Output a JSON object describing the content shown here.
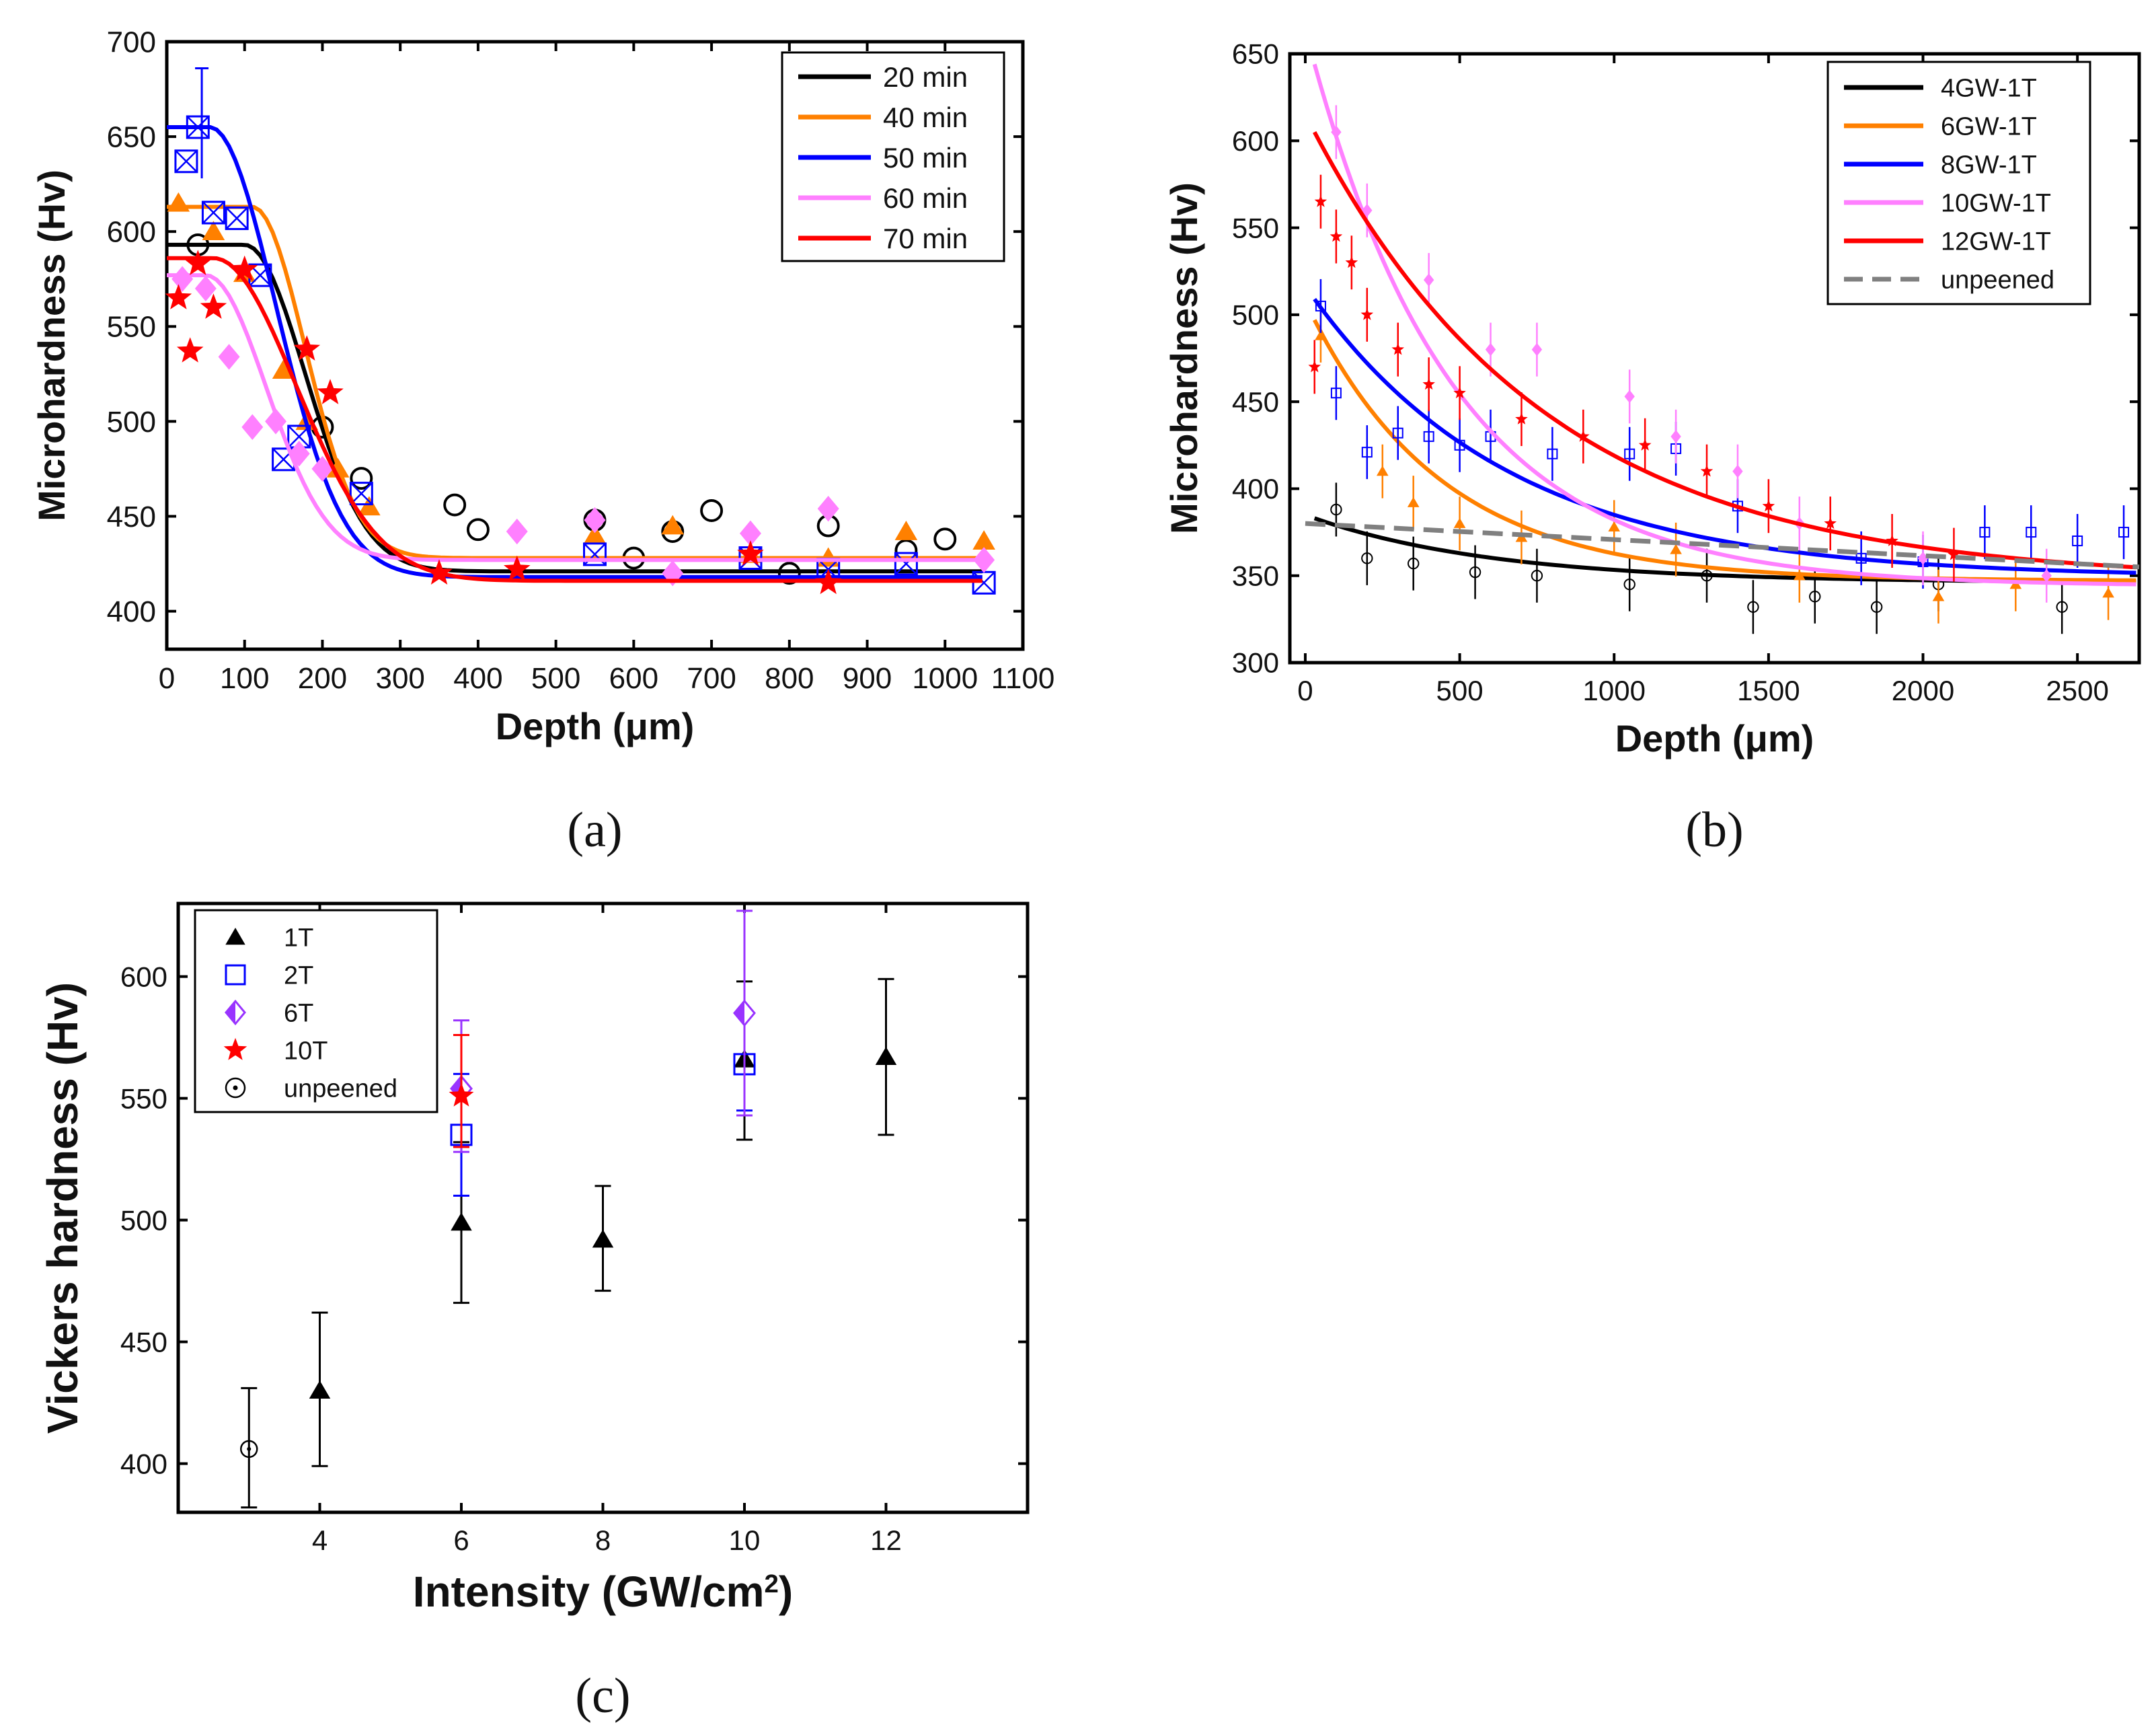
{
  "chart_data": [
    {
      "id": "a",
      "type": "scatter",
      "caption": "(a)",
      "xlabel": "Depth (μm)",
      "ylabel": "Microhardness (Hv)",
      "xlim": [
        0,
        1100
      ],
      "ylim": [
        380,
        700
      ],
      "xticks": [
        0,
        100,
        200,
        300,
        400,
        500,
        600,
        700,
        800,
        900,
        1000,
        1100
      ],
      "yticks": [
        400,
        450,
        500,
        550,
        600,
        650,
        700
      ],
      "legend_position": "top-right",
      "series": [
        {
          "name": "20 min",
          "color": "#000000",
          "marker": "circle",
          "points": [
            [
              40,
              593
            ],
            [
              200,
              497
            ],
            [
              250,
              470
            ],
            [
              370,
              456
            ],
            [
              400,
              443
            ],
            [
              550,
              448
            ],
            [
              600,
              428
            ],
            [
              650,
              442
            ],
            [
              700,
              453
            ],
            [
              800,
              420
            ],
            [
              850,
              445
            ],
            [
              950,
              432
            ],
            [
              1000,
              438
            ]
          ],
          "fit": {
            "base": 421,
            "amp": 172,
            "center": 100,
            "width": 110
          }
        },
        {
          "name": "40 min",
          "color": "#ff8000",
          "marker": "triangle",
          "points": [
            [
              15,
              615
            ],
            [
              60,
              600
            ],
            [
              100,
              578
            ],
            [
              150,
              527
            ],
            [
              180,
              500
            ],
            [
              220,
              475
            ],
            [
              260,
              455
            ],
            [
              550,
              440
            ],
            [
              650,
              445
            ],
            [
              750,
              430
            ],
            [
              850,
              428
            ],
            [
              950,
              442
            ],
            [
              1050,
              437
            ]
          ],
          "fit": {
            "base": 428,
            "amp": 185,
            "center": 110,
            "width": 95
          }
        },
        {
          "name": "50 min",
          "color": "#0000ff",
          "marker": "square-x",
          "points": [
            [
              25,
              637
            ],
            [
              40,
              655
            ],
            [
              60,
              610
            ],
            [
              90,
              607
            ],
            [
              120,
              577
            ],
            [
              150,
              480
            ],
            [
              170,
              492
            ],
            [
              250,
              462
            ],
            [
              550,
              430
            ],
            [
              750,
              428
            ],
            [
              850,
              422
            ],
            [
              950,
              425
            ],
            [
              1050,
              415
            ]
          ],
          "fit": {
            "base": 418,
            "amp": 237,
            "center": 55,
            "width": 120
          }
        },
        {
          "name": "60 min",
          "color": "#ff80ff",
          "marker": "diamond",
          "points": [
            [
              20,
              575
            ],
            [
              50,
              570
            ],
            [
              80,
              534
            ],
            [
              110,
              497
            ],
            [
              140,
              500
            ],
            [
              170,
              483
            ],
            [
              200,
              475
            ],
            [
              450,
              442
            ],
            [
              550,
              448
            ],
            [
              650,
              420
            ],
            [
              750,
              441
            ],
            [
              850,
              454
            ],
            [
              1050,
              427
            ]
          ],
          "fit": {
            "base": 427,
            "amp": 150,
            "center": 50,
            "width": 110
          }
        },
        {
          "name": "70 min",
          "color": "#ff0000",
          "marker": "star",
          "points": [
            [
              15,
              565
            ],
            [
              30,
              537
            ],
            [
              40,
              583
            ],
            [
              60,
              560
            ],
            [
              100,
              580
            ],
            [
              180,
              538
            ],
            [
              210,
              515
            ],
            [
              350,
              420
            ],
            [
              450,
              422
            ],
            [
              750,
              430
            ],
            [
              850,
              415
            ]
          ],
          "fit": {
            "base": 416,
            "amp": 170,
            "center": 60,
            "width": 150
          }
        }
      ],
      "error_bar": {
        "x": 45,
        "low": 628,
        "high": 686,
        "color": "#0000ff"
      }
    },
    {
      "id": "b",
      "type": "scatter",
      "caption": "(b)",
      "xlabel": "Depth (μm)",
      "ylabel": "Microhardness (Hv)",
      "xlim": [
        -50,
        2700
      ],
      "ylim": [
        300,
        650
      ],
      "xticks": [
        0,
        500,
        1000,
        1500,
        2000,
        2500
      ],
      "yticks": [
        300,
        350,
        400,
        450,
        500,
        550,
        600,
        650
      ],
      "legend_position": "top-right",
      "series": [
        {
          "name": "4GW-1T",
          "color": "#000000",
          "marker": "small-circle",
          "points": [
            [
              100,
              388
            ],
            [
              200,
              360
            ],
            [
              350,
              357
            ],
            [
              550,
              352
            ],
            [
              750,
              350
            ],
            [
              1050,
              345
            ],
            [
              1300,
              350
            ],
            [
              1450,
              332
            ],
            [
              1650,
              338
            ],
            [
              1850,
              332
            ],
            [
              2050,
              345
            ],
            [
              2450,
              332
            ]
          ],
          "fit": {
            "base": 346,
            "amp": 37,
            "decay": 600
          }
        },
        {
          "name": "6GW-1T",
          "color": "#ff8000",
          "marker": "small-triangle",
          "points": [
            [
              50,
              488
            ],
            [
              250,
              410
            ],
            [
              350,
              392
            ],
            [
              500,
              380
            ],
            [
              700,
              372
            ],
            [
              1000,
              378
            ],
            [
              1200,
              365
            ],
            [
              1600,
              350
            ],
            [
              2050,
              338
            ],
            [
              2300,
              345
            ],
            [
              2600,
              340
            ]
          ],
          "fit": {
            "base": 347,
            "amp": 150,
            "decay": 430
          }
        },
        {
          "name": "8GW-1T",
          "color": "#0000ff",
          "marker": "small-square",
          "points": [
            [
              50,
              505
            ],
            [
              100,
              455
            ],
            [
              200,
              421
            ],
            [
              300,
              432
            ],
            [
              400,
              430
            ],
            [
              500,
              425
            ],
            [
              600,
              430
            ],
            [
              800,
              420
            ],
            [
              1050,
              420
            ],
            [
              1200,
              423
            ],
            [
              1400,
              390
            ],
            [
              1800,
              360
            ],
            [
              2000,
              358
            ],
            [
              2200,
              375
            ],
            [
              2350,
              375
            ],
            [
              2500,
              370
            ],
            [
              2650,
              375
            ]
          ],
          "fit": {
            "base": 349,
            "amp": 160,
            "decay": 650
          }
        },
        {
          "name": "10GW-1T",
          "color": "#ff80ff",
          "marker": "small-diamond",
          "points": [
            [
              100,
              605
            ],
            [
              200,
              560
            ],
            [
              400,
              520
            ],
            [
              600,
              480
            ],
            [
              750,
              480
            ],
            [
              1050,
              453
            ],
            [
              1200,
              430
            ],
            [
              1400,
              410
            ],
            [
              1600,
              380
            ],
            [
              2000,
              360
            ],
            [
              2400,
              350
            ]
          ],
          "fit": {
            "base": 344,
            "amp": 300,
            "decay": 470
          }
        },
        {
          "name": "12GW-1T",
          "color": "#ff0000",
          "marker": "small-star",
          "points": [
            [
              30,
              470
            ],
            [
              50,
              565
            ],
            [
              100,
              545
            ],
            [
              150,
              530
            ],
            [
              200,
              500
            ],
            [
              300,
              480
            ],
            [
              400,
              460
            ],
            [
              500,
              455
            ],
            [
              700,
              440
            ],
            [
              900,
              430
            ],
            [
              1100,
              425
            ],
            [
              1300,
              410
            ],
            [
              1500,
              390
            ],
            [
              1700,
              380
            ],
            [
              1900,
              370
            ],
            [
              2100,
              362
            ]
          ],
          "fit": {
            "base": 347,
            "amp": 258,
            "decay": 760
          }
        },
        {
          "name": "unpeened",
          "color": "#808080",
          "marker": "dash",
          "points": [],
          "line": [
            [
              0,
              380
            ],
            [
              2700,
              355
            ]
          ]
        }
      ]
    },
    {
      "id": "c",
      "type": "scatter",
      "caption": "(c)",
      "xlabel": "Intensity (GW/cm",
      "xlabel_sup": "2",
      "xlabel_end": ")",
      "ylabel": "Vickers hardness (Hv)",
      "xlim": [
        2,
        14
      ],
      "ylim": [
        380,
        630
      ],
      "xticks": [
        4,
        6,
        8,
        10,
        12
      ],
      "yticks": [
        400,
        450,
        500,
        550,
        600
      ],
      "legend_position": "top-left",
      "series": [
        {
          "name": "1T",
          "color": "#000000",
          "marker": "triangle-filled",
          "points": [
            [
              4,
              430,
              399,
              462
            ],
            [
              6,
              499,
              466,
              532
            ],
            [
              8,
              492,
              471,
              514
            ],
            [
              10,
              566,
              533,
              598
            ],
            [
              12,
              567,
              535,
              599
            ]
          ]
        },
        {
          "name": "2T",
          "color": "#0000ff",
          "marker": "square-open",
          "points": [
            [
              6,
              535,
              510,
              560
            ],
            [
              10,
              564,
              545,
              584
            ]
          ]
        },
        {
          "name": "6T",
          "color": "#9933ff",
          "marker": "diamond-half",
          "points": [
            [
              6,
              554,
              528,
              582
            ],
            [
              10,
              585,
              543,
              627
            ]
          ]
        },
        {
          "name": "10T",
          "color": "#ff0000",
          "marker": "star",
          "points": [
            [
              6,
              551,
              530,
              576
            ]
          ]
        },
        {
          "name": "unpeened",
          "color": "#000000",
          "marker": "dot-circle",
          "points": [
            [
              3,
              406,
              382,
              431
            ]
          ]
        }
      ]
    }
  ]
}
